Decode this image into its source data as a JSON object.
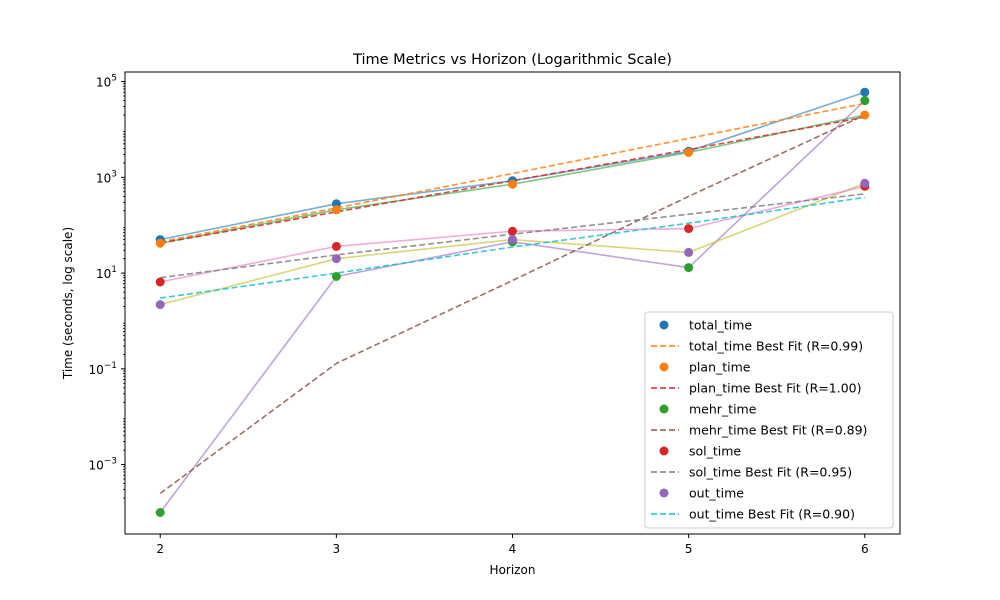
{
  "chart_data": {
    "type": "scatter",
    "title": "Time Metrics vs Horizon (Logarithmic Scale)",
    "xlabel": "Horizon",
    "ylabel": "Time (seconds, log scale)",
    "yscale": "log",
    "xlim": [
      1.8,
      6.2
    ],
    "ylim_log10": [
      -4.45,
      5.2
    ],
    "x_ticks": [
      2,
      3,
      4,
      5,
      6
    ],
    "x_tick_labels": [
      "2",
      "3",
      "4",
      "5",
      "6"
    ],
    "y_ticks_log10": [
      -3,
      -1,
      1,
      3,
      5
    ],
    "y_tick_labels": [
      "10^-3",
      "10^-1",
      "10^1",
      "10^3",
      "10^5"
    ],
    "grid": false,
    "legend_position": "lower right",
    "x": [
      2,
      3,
      4,
      5,
      6
    ],
    "series": [
      {
        "name": "total_time",
        "color": "#1f77b4",
        "values": [
          50,
          280,
          850,
          3500,
          60000
        ],
        "line_color": "#1f77b4",
        "fit_name": "total_time Best Fit (R=0.99)",
        "fit_color": "#ff7f0e",
        "fit_values": [
          45,
          230,
          1200,
          6500,
          35000
        ]
      },
      {
        "name": "plan_time",
        "color": "#ff7f0e",
        "values": [
          42,
          210,
          720,
          3300,
          20000
        ],
        "line_color": "#ff7f0e",
        "fit_name": "plan_time Best Fit (R=1.00)",
        "fit_color": "#d62728",
        "fit_values": [
          42,
          190,
          850,
          3800,
          18000
        ]
      },
      {
        "name": "mehr_time",
        "color": "#2ca02c",
        "values": [
          0.0001,
          8.5,
          45,
          13,
          40000
        ],
        "line_color": "#2ca02c",
        "fit_name": "mehr_time Best Fit (R=0.89)",
        "fit_color": "#8c564b",
        "fit_values": [
          0.00025,
          0.13,
          7,
          400,
          20000
        ]
      },
      {
        "name": "sol_time",
        "color": "#d62728",
        "values": [
          6.5,
          36,
          75,
          85,
          650
        ],
        "line_color": "#e377c2",
        "fit_name": "sol_time Best Fit (R=0.95)",
        "fit_color": "#7f7f7f",
        "fit_values": [
          8,
          24,
          65,
          170,
          450
        ]
      },
      {
        "name": "out_time",
        "color": "#9467bd",
        "values": [
          2.2,
          20,
          50,
          27,
          750
        ],
        "line_color": "#bcbd22",
        "fit_name": "out_time Best Fit (R=0.90)",
        "fit_color": "#17becf",
        "fit_values": [
          3,
          10,
          35,
          110,
          380
        ]
      }
    ],
    "extra_lines": [
      {
        "color": "#9467bd",
        "values": [
          0.0001,
          8.5,
          45,
          13,
          40000
        ]
      },
      {
        "color": "#bcbd22",
        "values": [
          2.2,
          20,
          50,
          27,
          750
        ]
      },
      {
        "color": "#e377c2",
        "values": [
          6.5,
          36,
          75,
          85,
          650
        ]
      },
      {
        "color": "#2ca02c",
        "values": [
          42,
          210,
          720,
          3300,
          20000
        ]
      },
      {
        "color": "#1f77b4",
        "values": [
          50,
          280,
          850,
          3500,
          60000
        ]
      }
    ]
  }
}
